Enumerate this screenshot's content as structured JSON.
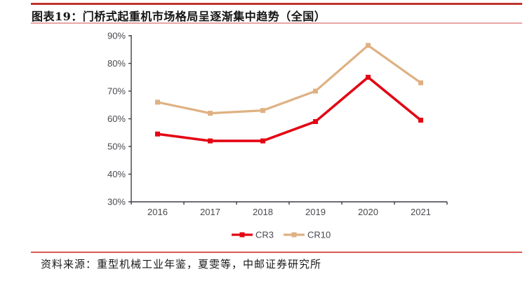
{
  "header": {
    "title": "图表19：门桥式起重机市场格局呈逐渐集中趋势（全国）"
  },
  "footer": {
    "source": "资料来源：重型机械工业年鉴，夏雯等，中邮证券研究所"
  },
  "colors": {
    "rule_top": "#C0332E",
    "rule_title": "#E7A6A4",
    "rule_footer": "#DB5A52",
    "axis": "#3F3F46",
    "tick_label": "#4A4A50",
    "title_text": "#141414",
    "source_text": "#1A1A1A",
    "cr3_red": "#E30613",
    "cr10_tan": "#DFB183"
  },
  "chart_data": {
    "type": "line",
    "title": "门桥式起重机市场格局呈逐渐集中趋势（全国）",
    "categories": [
      "2016",
      "2017",
      "2018",
      "2019",
      "2020",
      "2021"
    ],
    "series": [
      {
        "name": "CR3",
        "color": "#E30613",
        "values": [
          54.5,
          52,
          52,
          59,
          75,
          59.5
        ]
      },
      {
        "name": "CR10",
        "color": "#DFB183",
        "values": [
          66,
          62,
          63,
          70,
          86.5,
          73
        ]
      }
    ],
    "xlabel": "",
    "ylabel": "",
    "ylim": [
      30,
      90
    ],
    "ytick_step": 10,
    "ytick_format": "percent",
    "grid": false,
    "marker": "square",
    "legend_position": "bottom-center",
    "legend": [
      "CR3",
      "CR10"
    ]
  }
}
